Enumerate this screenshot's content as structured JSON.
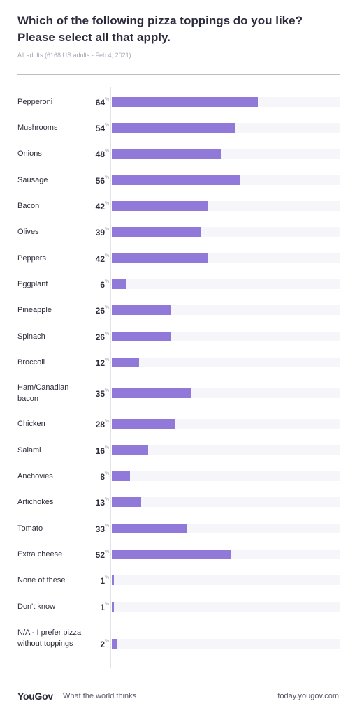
{
  "header": {
    "title": "Which of the following pizza toppings do you like? Please select all that apply.",
    "subtitle": "All adults (6168 US adults - Feb 4, 2021)"
  },
  "footer": {
    "logo": "YouGov",
    "tagline": "What the world thinks",
    "url": "today.yougov.com"
  },
  "colors": {
    "bar": "#9079d9",
    "track": "#f6f6fa"
  },
  "chart_data": {
    "type": "bar",
    "orientation": "horizontal",
    "title": "Which of the following pizza toppings do you like? Please select all that apply.",
    "subtitle": "All adults (6168 US adults - Feb 4, 2021)",
    "unit": "%",
    "xlim": [
      0,
      100
    ],
    "grid": false,
    "categories": [
      "Pepperoni",
      "Mushrooms",
      "Onions",
      "Sausage",
      "Bacon",
      "Olives",
      "Peppers",
      "Eggplant",
      "Pineapple",
      "Spinach",
      "Broccoli",
      "Ham/Canadian bacon",
      "Chicken",
      "Salami",
      "Anchovies",
      "Artichokes",
      "Tomato",
      "Extra cheese",
      "None of these",
      "Don't know",
      "N/A - I prefer pizza without toppings"
    ],
    "values": [
      64,
      54,
      48,
      56,
      42,
      39,
      42,
      6,
      26,
      26,
      12,
      35,
      28,
      16,
      8,
      13,
      33,
      52,
      1,
      1,
      2
    ]
  }
}
